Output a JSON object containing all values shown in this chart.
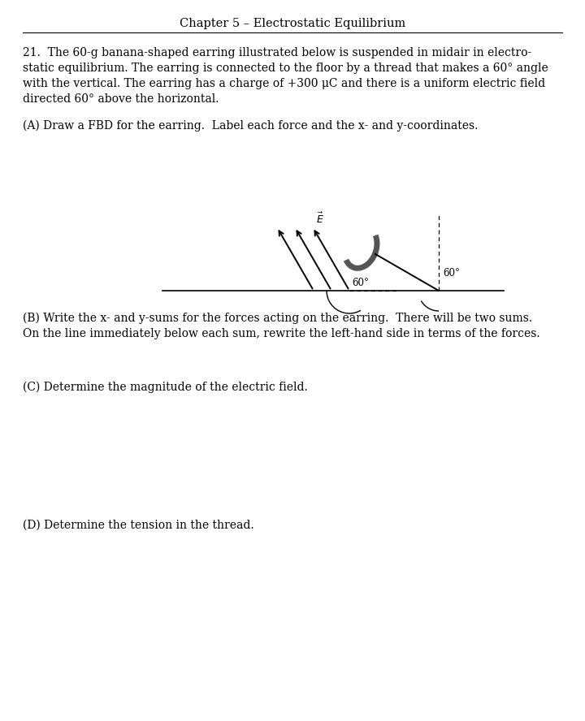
{
  "title": "Chapter 5 – Electrostatic Equilibrium",
  "bg_color": "#ffffff",
  "text_color": "#000000",
  "title_fontsize": 10.5,
  "body_fontsize": 10.0,
  "small_fontsize": 8.5,
  "problem_lines": [
    "21.  The 60-g banana-shaped earring illustrated below is suspended in midair in electro-",
    "static equilibrium. The earring is connected to the floor by a thread that makes a 60° angle",
    "with the vertical. The earring has a charge of +300 μC and there is a uniform electric field",
    "directed 60° above the horizontal."
  ],
  "partA": "(A) Draw a FBD for the earring.  Label each force and the x- and y-coordinates.",
  "partB1": "(B) Write the x- and y-sums for the forces acting on the earring.  There will be two sums.",
  "partB2": "On the line immediately below each sum, rewrite the left-hand side in terms of the forces.",
  "partC": "(C) Determine the magnitude of the electric field.",
  "partD": "(D) Determine the tension in the thread."
}
